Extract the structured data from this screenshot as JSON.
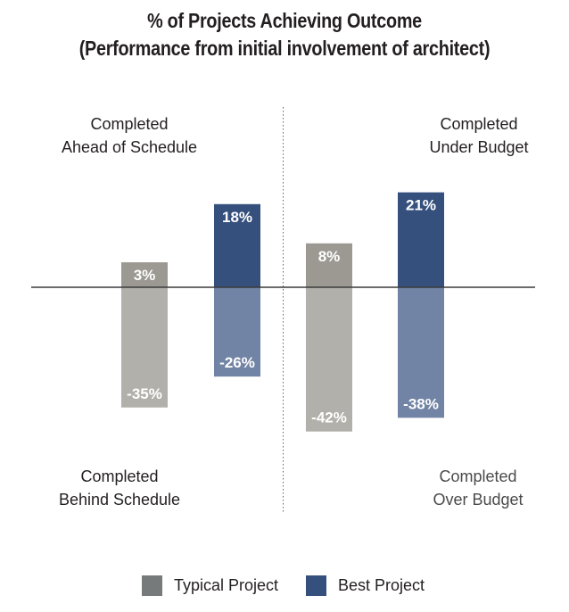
{
  "chart_data": {
    "type": "bar",
    "title": "% of Projects Achieving Outcome",
    "subtitle": "(Performance from initial involvement of architect)",
    "xlabel": "",
    "ylabel": "",
    "grid": false,
    "legend_position": "bottom-center",
    "groups": [
      {
        "name": "Schedule",
        "positive_label": [
          "Completed",
          "Ahead of Schedule"
        ],
        "negative_label": [
          "Completed",
          "Behind Schedule"
        ],
        "bars": [
          {
            "series": "Typical Project",
            "positive": 3,
            "negative": -35,
            "positive_text": "3%",
            "negative_text": "-35%"
          },
          {
            "series": "Best Project",
            "positive": 18,
            "negative": -26,
            "positive_text": "18%",
            "negative_text": "-26%"
          }
        ]
      },
      {
        "name": "Budget",
        "positive_label": [
          "Completed",
          "Under Budget"
        ],
        "negative_label": [
          "Completed",
          "Over Budget"
        ],
        "bars": [
          {
            "series": "Typical Project",
            "positive": 8,
            "negative": -42,
            "positive_text": "8%",
            "negative_text": "-42%"
          },
          {
            "series": "Best Project",
            "positive": 21,
            "negative": -38,
            "positive_text": "21%",
            "negative_text": "-38%"
          }
        ]
      }
    ],
    "series": [
      {
        "name": "Typical Project",
        "values": [
          3,
          -35,
          8,
          -42
        ],
        "color_positive": "#9c9993",
        "color_negative": "#b2b0aa",
        "legend_color": "#777a7b"
      },
      {
        "name": "Best Project",
        "values": [
          18,
          -26,
          21,
          -38
        ],
        "color_positive": "#36507e",
        "color_negative": "#7284a5",
        "legend_color": "#36507e"
      }
    ],
    "categories": [
      "Ahead of Schedule / Behind Schedule",
      "Under Budget / Over Budget"
    ],
    "ylim": [
      -45,
      25
    ]
  },
  "legend": [
    {
      "label": "Typical Project",
      "color": "#777a7b"
    },
    {
      "label": "Best Project",
      "color": "#36507e"
    }
  ],
  "colors": {
    "axis": "#3a3a3a",
    "divider": "#666666",
    "text": "#231f20"
  }
}
